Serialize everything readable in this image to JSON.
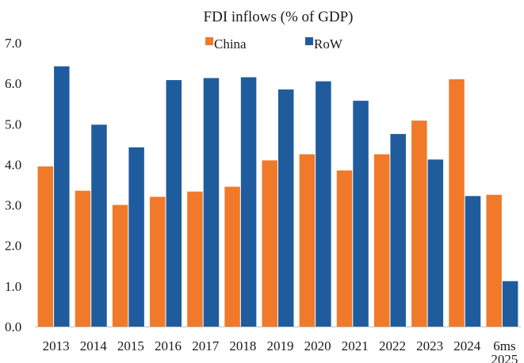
{
  "chart_data": {
    "type": "bar",
    "title": "FDI inflows (% of GDP)",
    "categories": [
      "2013",
      "2014",
      "2015",
      "2016",
      "2017",
      "2018",
      "2019",
      "2020",
      "2021",
      "2022",
      "2023",
      "2024",
      "6ms 2025"
    ],
    "category_lines": [
      [
        "2013"
      ],
      [
        "2014"
      ],
      [
        "2015"
      ],
      [
        "2016"
      ],
      [
        "2017"
      ],
      [
        "2018"
      ],
      [
        "2019"
      ],
      [
        "2020"
      ],
      [
        "2021"
      ],
      [
        "2022"
      ],
      [
        "2023"
      ],
      [
        "2024"
      ],
      [
        "6ms",
        "2025"
      ]
    ],
    "series": [
      {
        "name": "China",
        "color": "#f07a2a",
        "values": [
          3.95,
          3.35,
          3.0,
          3.2,
          3.33,
          3.45,
          4.1,
          4.25,
          3.85,
          4.25,
          5.08,
          6.1,
          3.25
        ]
      },
      {
        "name": "RoW",
        "color": "#1f5c9e",
        "values": [
          6.42,
          4.98,
          4.42,
          6.08,
          6.13,
          6.15,
          5.85,
          6.05,
          5.57,
          4.75,
          4.12,
          3.22,
          1.12
        ]
      }
    ],
    "yticks": [
      "0.0",
      "1.0",
      "2.0",
      "3.0",
      "4.0",
      "5.0",
      "6.0",
      "7.0"
    ],
    "ylim": [
      0,
      7
    ],
    "xlabel": "",
    "ylabel": "",
    "legend": "top-center",
    "grid": false
  }
}
